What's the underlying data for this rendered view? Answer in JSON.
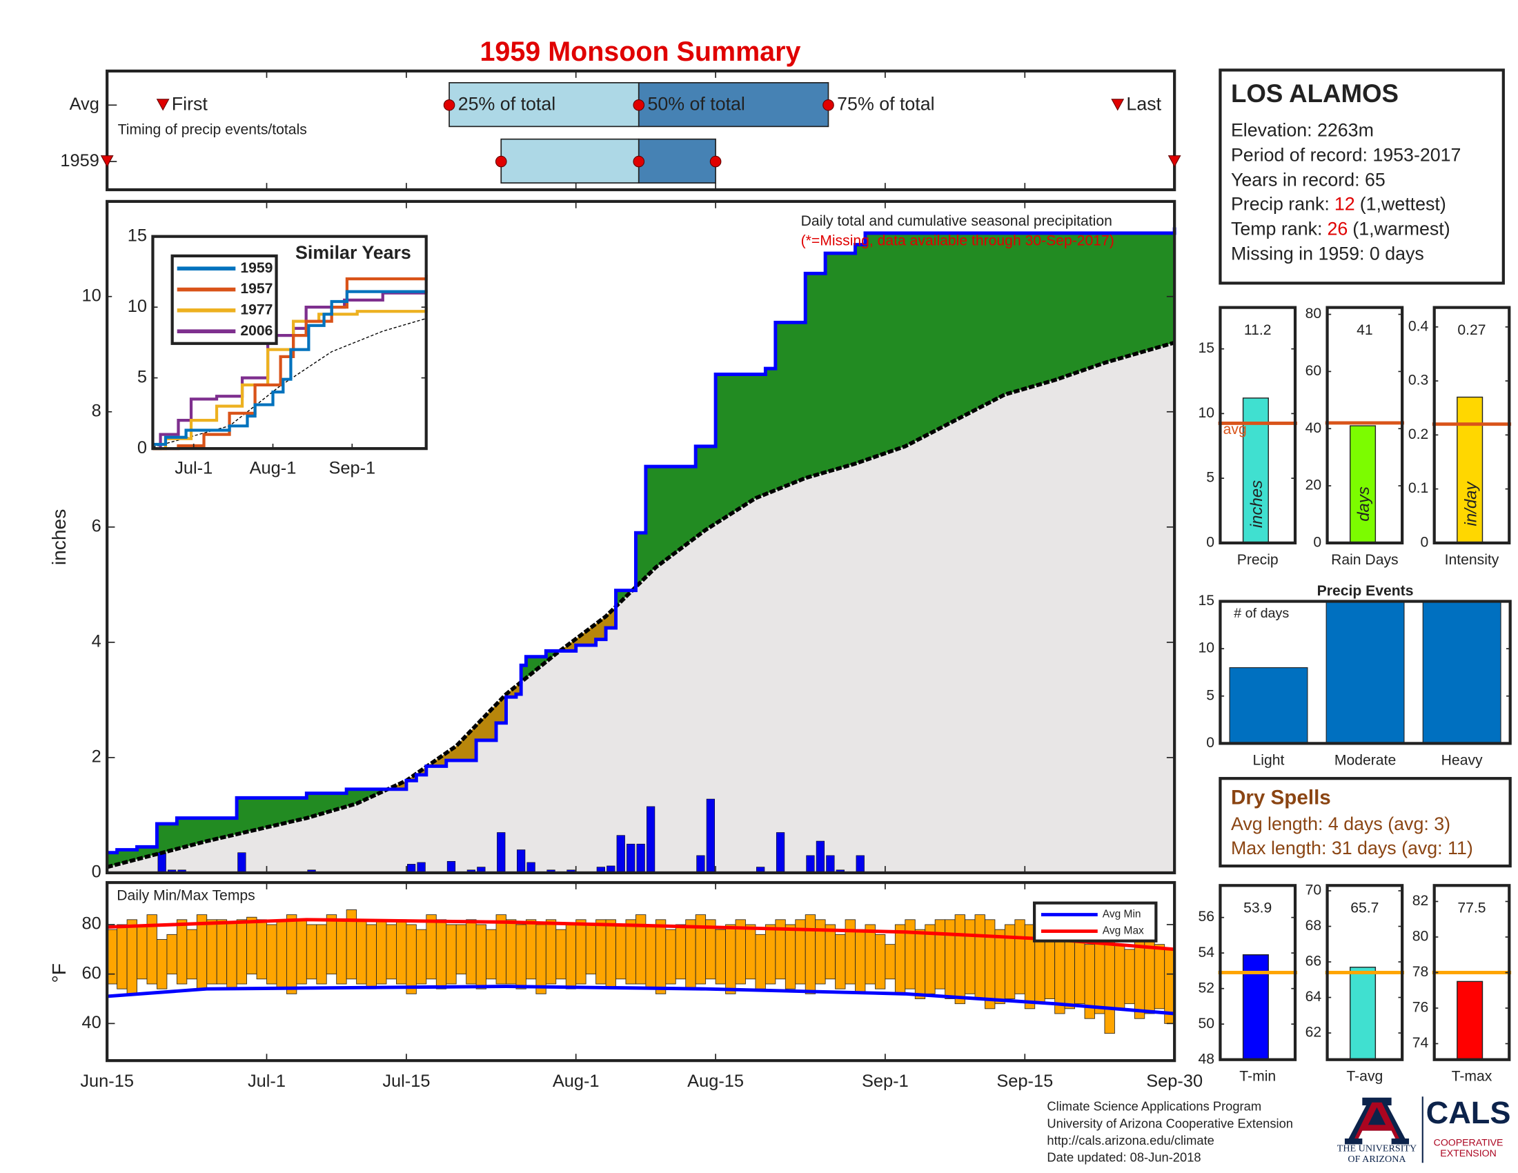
{
  "chart_data": [
    {
      "type": "timing",
      "title": "1959 Monsoon Summary",
      "annotation": "Timing of precip events/totals",
      "categories": [
        "Avg",
        "1959"
      ],
      "series": [
        {
          "name": "First",
          "values": [
            5.6,
            0
          ]
        },
        {
          "name": "25% of total",
          "values": [
            34.3,
            39.5
          ]
        },
        {
          "name": "50% of total",
          "values": [
            53.3,
            53.3
          ]
        },
        {
          "name": "75% of total",
          "values": [
            72.3,
            61
          ]
        },
        {
          "name": "Last",
          "values": [
            101.3,
            107
          ]
        }
      ],
      "box_colors": [
        "#add8e6",
        "#4682b4"
      ],
      "marker_color": "#e00000",
      "xlim": [
        0,
        107
      ]
    },
    {
      "type": "area-step",
      "ylabel": "inches",
      "annotation": "Daily total and cumulative seasonal precipitation",
      "note": "(*=Missing, data available through 30-Sep-2017)",
      "xlim": [
        0,
        107
      ],
      "ylim": [
        0,
        11.65
      ],
      "yticks": [
        0,
        2,
        4,
        6,
        8,
        10
      ],
      "cumulative": {
        "color": "#0000ff",
        "x": [
          0,
          1,
          3,
          5,
          7,
          13,
          20,
          24,
          30,
          31,
          32,
          34,
          37,
          39,
          40,
          41,
          41.5,
          42,
          44,
          47,
          49,
          50,
          51,
          53,
          54,
          59,
          61,
          66,
          67,
          70,
          72,
          75,
          76,
          107
        ],
        "values": [
          0.35,
          0.4,
          0.45,
          0.85,
          0.95,
          1.3,
          1.38,
          1.45,
          1.6,
          1.7,
          1.85,
          1.95,
          2.3,
          2.6,
          3.05,
          3.1,
          3.6,
          3.75,
          3.85,
          3.95,
          4.05,
          4.25,
          4.9,
          5.9,
          7.05,
          7.4,
          8.65,
          8.75,
          9.55,
          10.4,
          10.75,
          10.9,
          11.1,
          11.2
        ]
      },
      "average": {
        "color": "#000000",
        "x": [
          0,
          10,
          20,
          25,
          30,
          35,
          40,
          45,
          50,
          55,
          60,
          65,
          70,
          75,
          80,
          85,
          90,
          95,
          100,
          107
        ],
        "values": [
          0.1,
          0.55,
          0.95,
          1.2,
          1.6,
          2.2,
          3.1,
          3.8,
          4.45,
          5.3,
          5.95,
          6.5,
          6.85,
          7.1,
          7.4,
          7.85,
          8.3,
          8.55,
          8.85,
          9.2
        ]
      },
      "daily": {
        "color": "#0000ee",
        "x": [
          5,
          6,
          7,
          13,
          20,
          30,
          31,
          34,
          36,
          37,
          39,
          41,
          42,
          44,
          46,
          49,
          50,
          51,
          52,
          53,
          54,
          59,
          60,
          65,
          67,
          70,
          71,
          72,
          73,
          75
        ],
        "values": [
          0.35,
          0.05,
          0.05,
          0.35,
          0.05,
          0.15,
          0.18,
          0.2,
          0.05,
          0.1,
          0.7,
          0.4,
          0.18,
          0.05,
          0.05,
          0.1,
          0.12,
          0.65,
          0.5,
          0.5,
          1.15,
          0.3,
          1.28,
          0.1,
          0.7,
          0.3,
          0.55,
          0.3,
          0.05,
          0.3
        ]
      },
      "fill_colors": {
        "above": "#228b22",
        "below": "#b8860b",
        "base": "#e8e6e6"
      }
    },
    {
      "type": "line",
      "title": "Similar Years",
      "xlim": [
        0,
        107
      ],
      "xticks": [
        {
          "value": 16,
          "label": "Jul-1"
        },
        {
          "value": 47,
          "label": "Aug-1"
        },
        {
          "value": 78,
          "label": "Sep-1"
        }
      ],
      "ylim": [
        0,
        15
      ],
      "yticks": [
        0,
        5,
        10,
        15
      ],
      "series": [
        {
          "name": "1959",
          "color": "#0072bd",
          "x": [
            0,
            5,
            13,
            30,
            37,
            40,
            47,
            51,
            54,
            61,
            67,
            70,
            76,
            107
          ],
          "values": [
            0.3,
            0.8,
            1.3,
            1.6,
            2.3,
            3.1,
            4,
            4.9,
            7,
            8.7,
            9.5,
            10.4,
            11.1,
            11.2
          ]
        },
        {
          "name": "1957",
          "color": "#d95319",
          "x": [
            0,
            10,
            20,
            30,
            40,
            50,
            55,
            60,
            70,
            76,
            107
          ],
          "values": [
            0,
            0.2,
            1,
            2.5,
            4.5,
            6.5,
            8,
            9,
            10,
            12,
            12.3
          ]
        },
        {
          "name": "1977",
          "color": "#edb120",
          "x": [
            0,
            5,
            15,
            25,
            35,
            45,
            55,
            65,
            80,
            107
          ],
          "values": [
            0,
            0.7,
            2,
            3,
            4.5,
            7,
            9,
            9.5,
            9.7,
            10
          ]
        },
        {
          "name": "2006",
          "color": "#7e2f8e",
          "x": [
            0,
            3,
            10,
            15,
            25,
            35,
            45,
            55,
            60,
            75,
            90,
            107
          ],
          "values": [
            0,
            1,
            2,
            3.5,
            3.7,
            5,
            8,
            8.5,
            10,
            10.5,
            11,
            11
          ]
        }
      ],
      "average": {
        "color": "#000000",
        "x": [
          0,
          30,
          50,
          70,
          90,
          107
        ],
        "values": [
          0.1,
          1.6,
          4.45,
          6.85,
          8.3,
          9.2
        ]
      }
    },
    {
      "type": "bar-avg",
      "categories": [
        "Precip"
      ],
      "values": [
        11.2
      ],
      "unit": "inches",
      "avg": 9.25,
      "avg_label": "avg",
      "color": "#40e0d0",
      "avg_color": "#d9541a",
      "ylim": [
        0,
        18.2
      ],
      "yticks": [
        0,
        5,
        10,
        15
      ]
    },
    {
      "type": "bar-avg",
      "categories": [
        "Rain Days"
      ],
      "values": [
        41
      ],
      "unit": "days",
      "avg": 42,
      "color": "#7cfc00",
      "avg_color": "#d9541a",
      "ylim": [
        0,
        82.4
      ],
      "yticks": [
        0,
        20,
        40,
        60,
        80
      ]
    },
    {
      "type": "bar-avg",
      "categories": [
        "Intensity"
      ],
      "values": [
        0.27
      ],
      "unit": "in/day",
      "avg": 0.22,
      "color": "#ffd700",
      "avg_color": "#d9541a",
      "ylim": [
        0,
        0.436
      ],
      "yticks": [
        0,
        0.1,
        0.2,
        0.3,
        0.4
      ]
    },
    {
      "type": "bar",
      "title": "Precip Events",
      "ylabel": "# of days",
      "categories": [
        "Light",
        "Moderate",
        "Heavy"
      ],
      "values": [
        8,
        15,
        15
      ],
      "color": "#0070c0",
      "ylim": [
        0,
        15
      ],
      "yticks": [
        0,
        5,
        10,
        15
      ]
    },
    {
      "type": "floating-bar",
      "title": "Daily Min/Max Temps",
      "ylabel": "°F",
      "color": "#ffa500",
      "xlim": [
        0,
        107
      ],
      "xticks": [
        {
          "value": 0,
          "label": "Jun-15"
        },
        {
          "value": 16,
          "label": "Jul-1"
        },
        {
          "value": 30,
          "label": "Jul-15"
        },
        {
          "value": 47,
          "label": "Aug-1"
        },
        {
          "value": 61,
          "label": "Aug-15"
        },
        {
          "value": 78,
          "label": "Sep-1"
        },
        {
          "value": 92,
          "label": "Sep-15"
        },
        {
          "value": 107,
          "label": "Sep-30"
        }
      ],
      "ylim": [
        25,
        97
      ],
      "yticks": [
        40,
        60,
        80
      ],
      "min": [
        56,
        54,
        52,
        58,
        56,
        54,
        60,
        56,
        58,
        54,
        56,
        56,
        54,
        56,
        60,
        58,
        56,
        54,
        52,
        56,
        58,
        56,
        60,
        56,
        58,
        56,
        54,
        56,
        58,
        56,
        52,
        56,
        58,
        54,
        56,
        60,
        56,
        54,
        58,
        56,
        56,
        54,
        58,
        52,
        56,
        58,
        54,
        56,
        60,
        56,
        54,
        58,
        56,
        56,
        54,
        52,
        56,
        58,
        54,
        56,
        58,
        56,
        52,
        56,
        58,
        54,
        56,
        58,
        54,
        56,
        52,
        56,
        58,
        54,
        56,
        52,
        56,
        54,
        58,
        52,
        54,
        50,
        52,
        54,
        50,
        48,
        52,
        50,
        46,
        48,
        50,
        52,
        46,
        48,
        50,
        44,
        46,
        48,
        42,
        44,
        36,
        46,
        48,
        42,
        44,
        46,
        40
      ],
      "max": [
        78,
        80,
        82,
        80,
        84,
        74,
        76,
        82,
        78,
        84,
        82,
        82,
        81,
        82,
        83,
        82,
        80,
        82,
        84,
        82,
        80,
        80,
        84,
        82,
        86,
        82,
        80,
        82,
        80,
        82,
        80,
        78,
        84,
        82,
        80,
        80,
        82,
        80,
        78,
        84,
        82,
        80,
        82,
        80,
        82,
        78,
        80,
        82,
        80,
        82,
        82,
        80,
        82,
        84,
        80,
        82,
        78,
        80,
        82,
        84,
        82,
        78,
        80,
        82,
        80,
        76,
        80,
        82,
        80,
        82,
        84,
        82,
        80,
        76,
        82,
        78,
        80,
        76,
        72,
        80,
        82,
        78,
        80,
        82,
        82,
        84,
        82,
        84,
        82,
        78,
        80,
        82,
        80,
        76,
        82,
        78,
        80,
        76,
        72,
        80,
        74,
        72,
        70,
        76,
        74,
        72,
        70
      ],
      "series": [
        {
          "name": "Avg Min",
          "color": "#0000ff",
          "x": [
            0,
            10,
            40,
            60,
            80,
            95,
            107
          ],
          "values": [
            51,
            54,
            55,
            54,
            52,
            48,
            44
          ]
        },
        {
          "name": "Avg Max",
          "color": "#ff0000",
          "x": [
            0,
            20,
            40,
            60,
            80,
            95,
            107
          ],
          "values": [
            79,
            82,
            81,
            79,
            77,
            74,
            70
          ]
        }
      ]
    },
    {
      "type": "bar-avg",
      "categories": [
        "T-min"
      ],
      "values": [
        53.9
      ],
      "avg": 52.9,
      "color": "#0000ff",
      "avg_color": "#ffa500",
      "ylim": [
        48,
        57.8
      ],
      "yticks": [
        48,
        50,
        52,
        54,
        56
      ]
    },
    {
      "type": "bar-avg",
      "categories": [
        "T-avg"
      ],
      "values": [
        65.7
      ],
      "avg": 65.4,
      "color": "#40e0d0",
      "avg_color": "#ffa500",
      "ylim": [
        60.5,
        70.3
      ],
      "yticks": [
        62,
        64,
        66,
        68,
        70
      ]
    },
    {
      "type": "bar-avg",
      "categories": [
        "T-max"
      ],
      "values": [
        77.5
      ],
      "avg": 78,
      "color": "#ff0000",
      "avg_color": "#ffa500",
      "ylim": [
        73.1,
        82.9
      ],
      "yticks": [
        74,
        76,
        78,
        80,
        82
      ]
    }
  ],
  "station": {
    "name": "LOS ALAMOS",
    "elevation": "Elevation: 2263m",
    "period": "Period of record: 1953-2017",
    "years": "Years in record: 65",
    "precip_rank": {
      "label": "Precip rank:",
      "value": "12",
      "note": "(1,wettest)"
    },
    "temp_rank": {
      "label": "Temp rank:",
      "value": "26",
      "note": "(1,warmest)"
    },
    "missing": "Missing in 1959: 0 days"
  },
  "dry_spells": {
    "title": "Dry Spells",
    "lines": [
      "Avg length: 4 days (avg: 3)",
      "Max length: 31 days (avg: 11)"
    ]
  },
  "footer": [
    "Climate Science Applications Program",
    "University of Arizona Cooperative Extension",
    "http://cals.arizona.edu/climate",
    "Date updated: 08-Jun-2018"
  ],
  "logos": {
    "university": [
      "THE UNIVERSITY",
      "OF ARIZONA"
    ],
    "cals": "CALS",
    "extension": [
      "COOPERATIVE",
      "EXTENSION"
    ]
  }
}
